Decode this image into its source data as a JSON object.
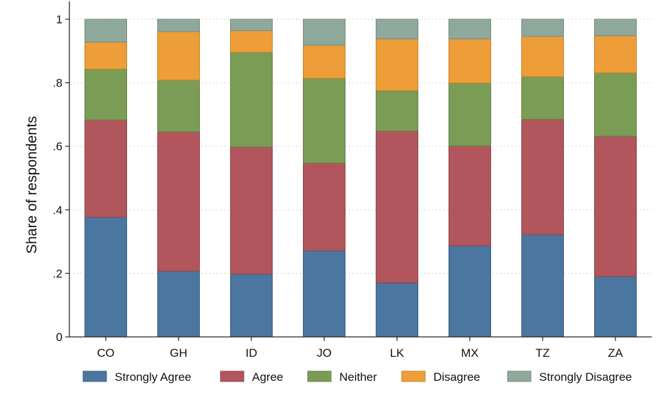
{
  "chart_data": {
    "type": "bar",
    "stacked": true,
    "title": "",
    "xlabel": "",
    "ylabel": "Share of respondents",
    "ylim": [
      0,
      1
    ],
    "yticks": [
      0,
      0.2,
      0.4,
      0.6,
      0.8,
      1
    ],
    "ytick_labels": [
      "0",
      ".2",
      ".4",
      ".6",
      ".8",
      "1"
    ],
    "grid": "horizontal-dotted",
    "legend_position": "bottom",
    "categories": [
      "CO",
      "GH",
      "ID",
      "JO",
      "LK",
      "MX",
      "TZ",
      "ZA"
    ],
    "series": [
      {
        "name": "Strongly Agree",
        "color": "#4a76a0",
        "values": [
          0.377,
          0.207,
          0.198,
          0.271,
          0.17,
          0.287,
          0.322,
          0.19
        ]
      },
      {
        "name": "Agree",
        "color": "#b0565c",
        "values": [
          0.306,
          0.439,
          0.4,
          0.276,
          0.478,
          0.314,
          0.363,
          0.442
        ]
      },
      {
        "name": "Neither",
        "color": "#7b9c55",
        "values": [
          0.16,
          0.162,
          0.298,
          0.267,
          0.127,
          0.198,
          0.134,
          0.199
        ]
      },
      {
        "name": "Disagree",
        "color": "#ee9e38",
        "values": [
          0.085,
          0.153,
          0.068,
          0.104,
          0.163,
          0.139,
          0.127,
          0.117
        ]
      },
      {
        "name": "Strongly Disagree",
        "color": "#8fa89c",
        "values": [
          0.072,
          0.039,
          0.036,
          0.082,
          0.062,
          0.062,
          0.054,
          0.052
        ]
      }
    ]
  }
}
